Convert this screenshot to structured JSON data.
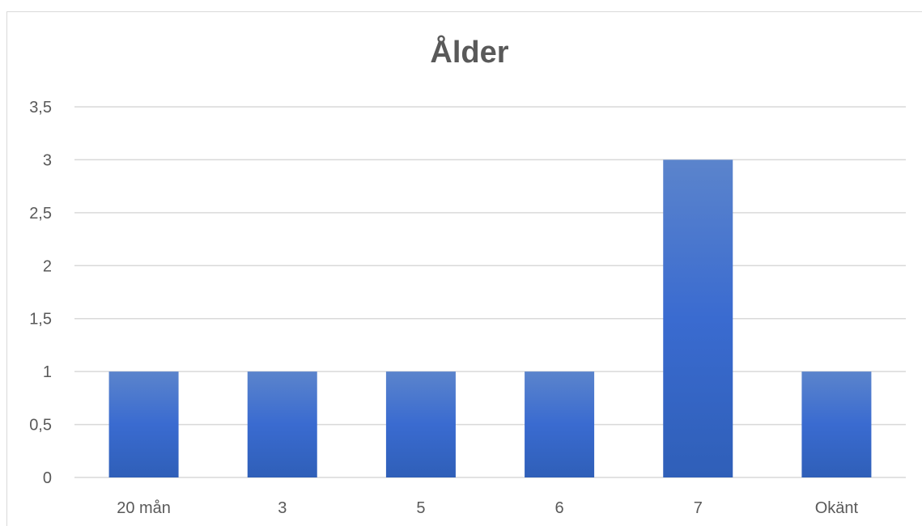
{
  "chart_data": {
    "type": "bar",
    "title": "Ålder",
    "categories": [
      "20 mån",
      "3",
      "5",
      "6",
      "7",
      "Okänt"
    ],
    "values": [
      1,
      1,
      1,
      1,
      3,
      1
    ],
    "ylim": [
      0,
      3.5
    ],
    "yticks": [
      0,
      0.5,
      1,
      1.5,
      2,
      2.5,
      3,
      3.5
    ],
    "ytick_labels": [
      "0",
      "0,5",
      "1",
      "1,5",
      "2",
      "2,5",
      "3",
      "3,5"
    ],
    "grid": true,
    "legend": "none",
    "colors": {
      "bar_top": "#5b84cc",
      "bar_bottom": "#2f5fb8",
      "grid": "#d9d9d9",
      "text": "#595959"
    }
  }
}
